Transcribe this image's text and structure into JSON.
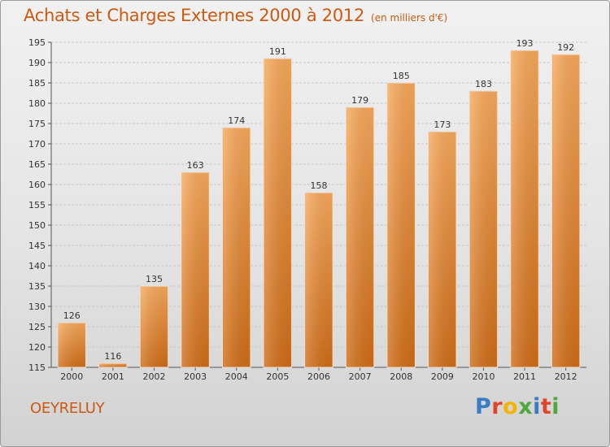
{
  "header": {
    "title": "Achats et Charges Externes 2000 à 2012",
    "subtitle": "(en milliers d'€)"
  },
  "footer": {
    "place": "OEYRELUY",
    "logo": "Proxiti"
  },
  "colors": {
    "accent": "#cc5a12",
    "bar_light": "#f7a658",
    "bar_dark": "#d5721c",
    "logo_letters": [
      "#3a7cc4",
      "#e0452c",
      "#f4b400",
      "#4fa83d",
      "#3a7cc4",
      "#e0452c",
      "#4fa83d"
    ]
  },
  "chart_data": {
    "type": "bar",
    "title": "Achats et Charges Externes 2000 à 2012",
    "subtitle": "(en milliers d'€)",
    "xlabel": "",
    "ylabel": "",
    "categories": [
      "2000",
      "2001",
      "2002",
      "2003",
      "2004",
      "2005",
      "2006",
      "2007",
      "2008",
      "2009",
      "2010",
      "2011",
      "2012"
    ],
    "values": [
      126,
      116,
      135,
      163,
      174,
      191,
      158,
      179,
      185,
      173,
      183,
      193,
      192
    ],
    "ylim": [
      115,
      195
    ],
    "yticks": [
      115,
      120,
      125,
      130,
      135,
      140,
      145,
      150,
      155,
      160,
      165,
      170,
      175,
      180,
      185,
      190,
      195
    ],
    "grid": true,
    "legend": "none"
  }
}
